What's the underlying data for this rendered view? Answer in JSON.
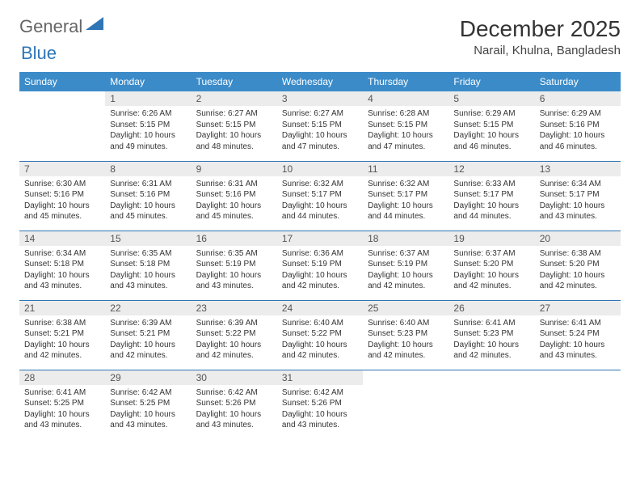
{
  "logo": {
    "text1": "General",
    "text2": "Blue",
    "triangle_color": "#2e75b6"
  },
  "title": "December 2025",
  "location": "Narail, Khulna, Bangladesh",
  "colors": {
    "header_bg": "#3b8bc9",
    "header_fg": "#ffffff",
    "rule": "#2e75b6",
    "daynum_bg": "#ececec",
    "text": "#333333",
    "background": "#ffffff"
  },
  "typography": {
    "month_title_fontsize": 28,
    "location_fontsize": 15,
    "weekday_fontsize": 12,
    "daynum_fontsize": 12,
    "body_fontsize": 10
  },
  "weekdays": [
    "Sunday",
    "Monday",
    "Tuesday",
    "Wednesday",
    "Thursday",
    "Friday",
    "Saturday"
  ],
  "weeks": [
    [
      null,
      {
        "n": "1",
        "sr": "Sunrise: 6:26 AM",
        "ss": "Sunset: 5:15 PM",
        "dl1": "Daylight: 10 hours",
        "dl2": "and 49 minutes."
      },
      {
        "n": "2",
        "sr": "Sunrise: 6:27 AM",
        "ss": "Sunset: 5:15 PM",
        "dl1": "Daylight: 10 hours",
        "dl2": "and 48 minutes."
      },
      {
        "n": "3",
        "sr": "Sunrise: 6:27 AM",
        "ss": "Sunset: 5:15 PM",
        "dl1": "Daylight: 10 hours",
        "dl2": "and 47 minutes."
      },
      {
        "n": "4",
        "sr": "Sunrise: 6:28 AM",
        "ss": "Sunset: 5:15 PM",
        "dl1": "Daylight: 10 hours",
        "dl2": "and 47 minutes."
      },
      {
        "n": "5",
        "sr": "Sunrise: 6:29 AM",
        "ss": "Sunset: 5:15 PM",
        "dl1": "Daylight: 10 hours",
        "dl2": "and 46 minutes."
      },
      {
        "n": "6",
        "sr": "Sunrise: 6:29 AM",
        "ss": "Sunset: 5:16 PM",
        "dl1": "Daylight: 10 hours",
        "dl2": "and 46 minutes."
      }
    ],
    [
      {
        "n": "7",
        "sr": "Sunrise: 6:30 AM",
        "ss": "Sunset: 5:16 PM",
        "dl1": "Daylight: 10 hours",
        "dl2": "and 45 minutes."
      },
      {
        "n": "8",
        "sr": "Sunrise: 6:31 AM",
        "ss": "Sunset: 5:16 PM",
        "dl1": "Daylight: 10 hours",
        "dl2": "and 45 minutes."
      },
      {
        "n": "9",
        "sr": "Sunrise: 6:31 AM",
        "ss": "Sunset: 5:16 PM",
        "dl1": "Daylight: 10 hours",
        "dl2": "and 45 minutes."
      },
      {
        "n": "10",
        "sr": "Sunrise: 6:32 AM",
        "ss": "Sunset: 5:17 PM",
        "dl1": "Daylight: 10 hours",
        "dl2": "and 44 minutes."
      },
      {
        "n": "11",
        "sr": "Sunrise: 6:32 AM",
        "ss": "Sunset: 5:17 PM",
        "dl1": "Daylight: 10 hours",
        "dl2": "and 44 minutes."
      },
      {
        "n": "12",
        "sr": "Sunrise: 6:33 AM",
        "ss": "Sunset: 5:17 PM",
        "dl1": "Daylight: 10 hours",
        "dl2": "and 44 minutes."
      },
      {
        "n": "13",
        "sr": "Sunrise: 6:34 AM",
        "ss": "Sunset: 5:17 PM",
        "dl1": "Daylight: 10 hours",
        "dl2": "and 43 minutes."
      }
    ],
    [
      {
        "n": "14",
        "sr": "Sunrise: 6:34 AM",
        "ss": "Sunset: 5:18 PM",
        "dl1": "Daylight: 10 hours",
        "dl2": "and 43 minutes."
      },
      {
        "n": "15",
        "sr": "Sunrise: 6:35 AM",
        "ss": "Sunset: 5:18 PM",
        "dl1": "Daylight: 10 hours",
        "dl2": "and 43 minutes."
      },
      {
        "n": "16",
        "sr": "Sunrise: 6:35 AM",
        "ss": "Sunset: 5:19 PM",
        "dl1": "Daylight: 10 hours",
        "dl2": "and 43 minutes."
      },
      {
        "n": "17",
        "sr": "Sunrise: 6:36 AM",
        "ss": "Sunset: 5:19 PM",
        "dl1": "Daylight: 10 hours",
        "dl2": "and 42 minutes."
      },
      {
        "n": "18",
        "sr": "Sunrise: 6:37 AM",
        "ss": "Sunset: 5:19 PM",
        "dl1": "Daylight: 10 hours",
        "dl2": "and 42 minutes."
      },
      {
        "n": "19",
        "sr": "Sunrise: 6:37 AM",
        "ss": "Sunset: 5:20 PM",
        "dl1": "Daylight: 10 hours",
        "dl2": "and 42 minutes."
      },
      {
        "n": "20",
        "sr": "Sunrise: 6:38 AM",
        "ss": "Sunset: 5:20 PM",
        "dl1": "Daylight: 10 hours",
        "dl2": "and 42 minutes."
      }
    ],
    [
      {
        "n": "21",
        "sr": "Sunrise: 6:38 AM",
        "ss": "Sunset: 5:21 PM",
        "dl1": "Daylight: 10 hours",
        "dl2": "and 42 minutes."
      },
      {
        "n": "22",
        "sr": "Sunrise: 6:39 AM",
        "ss": "Sunset: 5:21 PM",
        "dl1": "Daylight: 10 hours",
        "dl2": "and 42 minutes."
      },
      {
        "n": "23",
        "sr": "Sunrise: 6:39 AM",
        "ss": "Sunset: 5:22 PM",
        "dl1": "Daylight: 10 hours",
        "dl2": "and 42 minutes."
      },
      {
        "n": "24",
        "sr": "Sunrise: 6:40 AM",
        "ss": "Sunset: 5:22 PM",
        "dl1": "Daylight: 10 hours",
        "dl2": "and 42 minutes."
      },
      {
        "n": "25",
        "sr": "Sunrise: 6:40 AM",
        "ss": "Sunset: 5:23 PM",
        "dl1": "Daylight: 10 hours",
        "dl2": "and 42 minutes."
      },
      {
        "n": "26",
        "sr": "Sunrise: 6:41 AM",
        "ss": "Sunset: 5:23 PM",
        "dl1": "Daylight: 10 hours",
        "dl2": "and 42 minutes."
      },
      {
        "n": "27",
        "sr": "Sunrise: 6:41 AM",
        "ss": "Sunset: 5:24 PM",
        "dl1": "Daylight: 10 hours",
        "dl2": "and 43 minutes."
      }
    ],
    [
      {
        "n": "28",
        "sr": "Sunrise: 6:41 AM",
        "ss": "Sunset: 5:25 PM",
        "dl1": "Daylight: 10 hours",
        "dl2": "and 43 minutes."
      },
      {
        "n": "29",
        "sr": "Sunrise: 6:42 AM",
        "ss": "Sunset: 5:25 PM",
        "dl1": "Daylight: 10 hours",
        "dl2": "and 43 minutes."
      },
      {
        "n": "30",
        "sr": "Sunrise: 6:42 AM",
        "ss": "Sunset: 5:26 PM",
        "dl1": "Daylight: 10 hours",
        "dl2": "and 43 minutes."
      },
      {
        "n": "31",
        "sr": "Sunrise: 6:42 AM",
        "ss": "Sunset: 5:26 PM",
        "dl1": "Daylight: 10 hours",
        "dl2": "and 43 minutes."
      },
      null,
      null,
      null
    ]
  ]
}
